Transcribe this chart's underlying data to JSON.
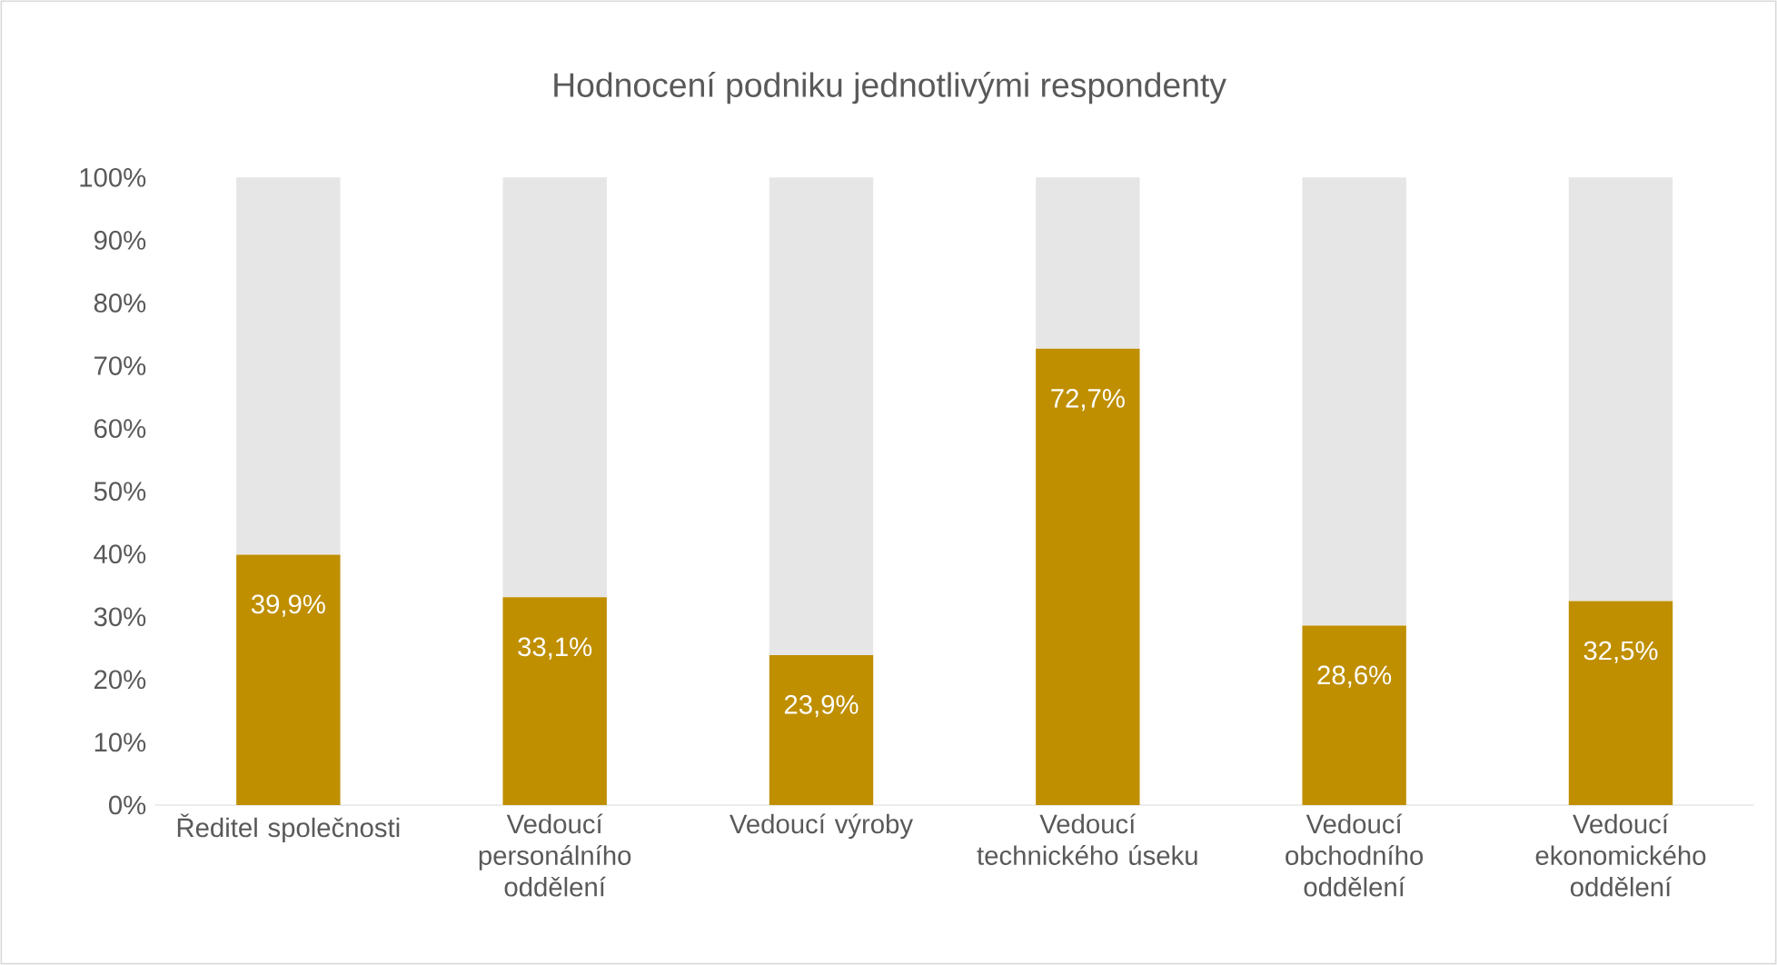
{
  "chart_data": {
    "type": "bar",
    "title": "Hodnocení podniku jednotlivými respondenty",
    "categories": [
      "Ředitel společnosti",
      "Vedoucí personálního oddělení",
      "Vedoucí výroby",
      "Vedoucí technického úseku",
      "Vedoucí obchodního oddělení",
      "Vedoucí ekonomického oddělení"
    ],
    "stacked": true,
    "series": [
      {
        "color": "#bf8f00",
        "values": [
          39.9,
          33.1,
          23.9,
          72.7,
          28.6,
          32.5
        ],
        "value_labels": [
          "39,9%",
          "33,1%",
          "23,9%",
          "72,7%",
          "28,6%",
          "32,5%"
        ]
      },
      {
        "color": "#e7e6e6",
        "values": [
          60.1,
          66.9,
          76.1,
          27.3,
          71.4,
          67.5
        ]
      }
    ],
    "ylim": [
      0,
      100
    ],
    "yticks": [
      {
        "value": 0,
        "label": "0%"
      },
      {
        "value": 10,
        "label": "10%"
      },
      {
        "value": 20,
        "label": "20%"
      },
      {
        "value": 30,
        "label": "30%"
      },
      {
        "value": 40,
        "label": "40%"
      },
      {
        "value": 50,
        "label": "50%"
      },
      {
        "value": 60,
        "label": "60%"
      },
      {
        "value": 70,
        "label": "70%"
      },
      {
        "value": 80,
        "label": "80%"
      },
      {
        "value": 90,
        "label": "90%"
      },
      {
        "value": 100,
        "label": "100%"
      }
    ]
  }
}
